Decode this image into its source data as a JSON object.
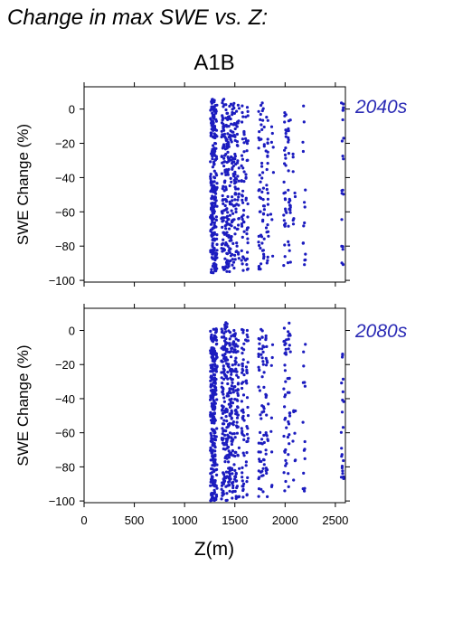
{
  "page": {
    "title": "Change in max SWE vs. Z:",
    "scenario": "A1B"
  },
  "style": {
    "point_color": "#1c1cbf",
    "label_color": "#2b2bb5"
  },
  "chart_data": [
    {
      "type": "scatter",
      "period_label": "2040s",
      "ylabel": "SWE Change (%)",
      "xlabel": "",
      "xlim": [
        0,
        2600
      ],
      "ylim": [
        -101,
        13
      ],
      "xticks": [
        0,
        500,
        1000,
        1500,
        2000,
        2500
      ],
      "yticks": [
        0,
        -20,
        -40,
        -60,
        -80,
        -100
      ],
      "show_xtick_labels": false,
      "elevation_clusters": [
        {
          "x": 1270,
          "n": 90,
          "ymin": -96,
          "ymax": 6
        },
        {
          "x": 1290,
          "n": 90,
          "ymin": -96,
          "ymax": 6
        },
        {
          "x": 1310,
          "n": 70,
          "ymin": -95,
          "ymax": 6
        },
        {
          "x": 1380,
          "n": 60,
          "ymin": -95,
          "ymax": 6
        },
        {
          "x": 1410,
          "n": 60,
          "ymin": -96,
          "ymax": 6
        },
        {
          "x": 1440,
          "n": 55,
          "ymin": -95,
          "ymax": 6
        },
        {
          "x": 1470,
          "n": 45,
          "ymin": -93,
          "ymax": 6
        },
        {
          "x": 1500,
          "n": 45,
          "ymin": -93,
          "ymax": 6
        },
        {
          "x": 1530,
          "n": 35,
          "ymin": -92,
          "ymax": 6
        },
        {
          "x": 1580,
          "n": 40,
          "ymin": -95,
          "ymax": 6
        },
        {
          "x": 1620,
          "n": 30,
          "ymin": -94,
          "ymax": 4
        },
        {
          "x": 1750,
          "n": 30,
          "ymin": -95,
          "ymax": 4
        },
        {
          "x": 1780,
          "n": 30,
          "ymin": -93,
          "ymax": 4
        },
        {
          "x": 1820,
          "n": 25,
          "ymin": -90,
          "ymax": 4
        },
        {
          "x": 1870,
          "n": 8,
          "ymin": -88,
          "ymax": 2
        },
        {
          "x": 2000,
          "n": 30,
          "ymin": -93,
          "ymax": 6
        },
        {
          "x": 2040,
          "n": 25,
          "ymin": -90,
          "ymax": 6
        },
        {
          "x": 2090,
          "n": 8,
          "ymin": -70,
          "ymax": -20
        },
        {
          "x": 2190,
          "n": 15,
          "ymin": -92,
          "ymax": 5
        },
        {
          "x": 2570,
          "n": 20,
          "ymin": -92,
          "ymax": 4
        }
      ]
    },
    {
      "type": "scatter",
      "period_label": "2080s",
      "ylabel": "SWE Change (%)",
      "xlabel": "Z(m)",
      "xlim": [
        0,
        2600
      ],
      "ylim": [
        -101,
        13
      ],
      "xticks": [
        0,
        500,
        1000,
        1500,
        2000,
        2500
      ],
      "yticks": [
        0,
        -20,
        -40,
        -60,
        -80,
        -100
      ],
      "show_xtick_labels": true,
      "elevation_clusters": [
        {
          "x": 1270,
          "n": 100,
          "ymin": -100,
          "ymax": 1
        },
        {
          "x": 1290,
          "n": 100,
          "ymin": -100,
          "ymax": 1
        },
        {
          "x": 1310,
          "n": 80,
          "ymin": -100,
          "ymax": 1
        },
        {
          "x": 1380,
          "n": 70,
          "ymin": -100,
          "ymax": 3
        },
        {
          "x": 1410,
          "n": 70,
          "ymin": -100,
          "ymax": 5
        },
        {
          "x": 1440,
          "n": 60,
          "ymin": -100,
          "ymax": 2
        },
        {
          "x": 1470,
          "n": 55,
          "ymin": -100,
          "ymax": 1
        },
        {
          "x": 1500,
          "n": 50,
          "ymin": -99,
          "ymax": 1
        },
        {
          "x": 1530,
          "n": 40,
          "ymin": -98,
          "ymax": 1
        },
        {
          "x": 1580,
          "n": 45,
          "ymin": -99,
          "ymax": 1
        },
        {
          "x": 1620,
          "n": 30,
          "ymin": -98,
          "ymax": 3
        },
        {
          "x": 1750,
          "n": 30,
          "ymin": -99,
          "ymax": 1
        },
        {
          "x": 1780,
          "n": 30,
          "ymin": -98,
          "ymax": 1
        },
        {
          "x": 1820,
          "n": 25,
          "ymin": -98,
          "ymax": 1
        },
        {
          "x": 1870,
          "n": 8,
          "ymin": -95,
          "ymax": -5
        },
        {
          "x": 2000,
          "n": 30,
          "ymin": -97,
          "ymax": 5
        },
        {
          "x": 2040,
          "n": 25,
          "ymin": -96,
          "ymax": 5
        },
        {
          "x": 2090,
          "n": 8,
          "ymin": -92,
          "ymax": -40
        },
        {
          "x": 2190,
          "n": 15,
          "ymin": -97,
          "ymax": -5
        },
        {
          "x": 2570,
          "n": 22,
          "ymin": -97,
          "ymax": -12
        }
      ]
    }
  ]
}
